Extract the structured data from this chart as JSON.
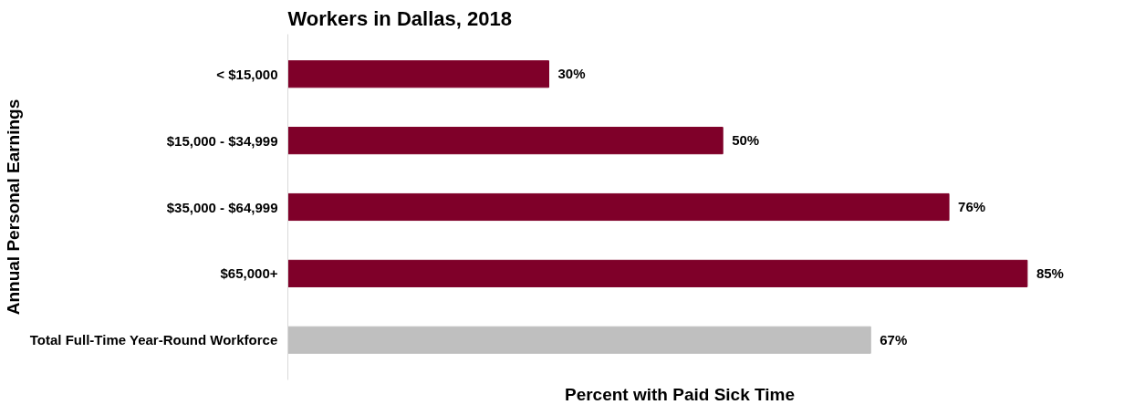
{
  "chart_data": {
    "type": "bar",
    "orientation": "horizontal",
    "title": "Workers in Dallas, 2018",
    "xlabel": "Percent with Paid Sick Time",
    "ylabel": "Annual Personal Earnings",
    "categories": [
      "< $15,000",
      "$15,000 - $34,999",
      "$35,000 - $64,999",
      "$65,000+",
      "Total Full-Time Year-Round Workforce"
    ],
    "values": [
      30,
      50,
      76,
      85,
      67
    ],
    "colors": [
      "#7f0029",
      "#7f0029",
      "#7f0029",
      "#7f0029",
      "#bfbfbf"
    ],
    "value_labels": [
      "30%",
      "50%",
      "76%",
      "85%",
      "67%"
    ],
    "tick_labels": "y",
    "grid": false
  }
}
